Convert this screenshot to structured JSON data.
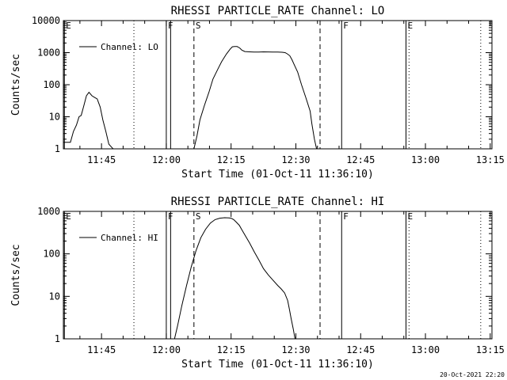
{
  "footer": {
    "timestamp": "20-Oct-2021 22:20"
  },
  "chart_data": [
    {
      "type": "line",
      "title": "RHESSI PARTICLE_RATE Channel: LO",
      "xlabel": "Start Time (01-Oct-11 11:36:10)",
      "ylabel": "Counts/sec",
      "yscale": "log",
      "ylim": [
        1,
        10000
      ],
      "xlim_minutes": [
        36.17,
        135.4
      ],
      "x_tick_labels": [
        "11:45",
        "12:00",
        "12:15",
        "12:30",
        "12:45",
        "13:00",
        "13:15"
      ],
      "x_tick_minutes": [
        45,
        60,
        75,
        90,
        105,
        120,
        135
      ],
      "y_tick_labels": [
        "1",
        "10",
        "100",
        "1000",
        "10000"
      ],
      "y_tick_values": [
        1,
        10,
        100,
        1000,
        10000
      ],
      "legend": {
        "label": "Channel: LO",
        "placement": "top-left"
      },
      "markers": [
        {
          "label": "E",
          "minute": 36.4,
          "style": "solid"
        },
        {
          "label": "F",
          "minute": 60.0,
          "style": "solid"
        },
        {
          "label": "",
          "minute": 61.0,
          "style": "solid"
        },
        {
          "label": "S",
          "minute": 66.4,
          "style": "dashed"
        },
        {
          "label": "",
          "minute": 52.5,
          "style": "dotted"
        },
        {
          "label": "",
          "minute": 95.6,
          "style": "dashed"
        },
        {
          "label": "F",
          "minute": 100.6,
          "style": "solid"
        },
        {
          "label": "E",
          "minute": 115.5,
          "style": "solid"
        },
        {
          "label": "",
          "minute": 116.2,
          "style": "dotted"
        },
        {
          "label": "",
          "minute": 132.8,
          "style": "dotted"
        }
      ],
      "series": [
        {
          "name": "Channel: LO",
          "segments": [
            {
              "x": [
                36.2,
                37.8,
                38.5,
                39.2,
                39.8,
                40.3,
                40.9,
                41.5,
                42.1,
                42.8,
                43.4,
                44.0,
                44.7,
                45.3,
                46.0,
                46.7,
                47.4,
                47.7
              ],
              "y": [
                1.6,
                1.6,
                3.5,
                5.5,
                10,
                11,
                22,
                45,
                58,
                45,
                40,
                36,
                20,
                8,
                3.5,
                1.4,
                1.1,
                1.0
              ]
            },
            {
              "x": [
                66.4,
                67.1,
                67.8,
                68.8,
                69.9,
                70.8,
                71.9,
                72.8,
                73.9,
                74.8,
                75.3,
                75.8,
                76.4,
                77.0,
                77.5,
                78.2,
                79.3,
                80.3,
                81.4,
                82.5,
                83.6,
                84.7,
                85.8,
                86.8,
                87.5,
                88.0,
                88.6,
                89.1,
                89.7,
                90.4,
                91.3,
                92.3,
                93.3,
                93.7,
                94.3,
                94.8
              ],
              "y": [
                1.0,
                2.5,
                8,
                22,
                60,
                150,
                300,
                520,
                900,
                1300,
                1520,
                1560,
                1550,
                1400,
                1200,
                1080,
                1060,
                1040,
                1040,
                1060,
                1050,
                1040,
                1040,
                1030,
                1000,
                920,
                800,
                600,
                400,
                250,
                100,
                40,
                15,
                6,
                2,
                1.0
              ]
            }
          ]
        }
      ]
    },
    {
      "type": "line",
      "title": "RHESSI PARTICLE_RATE Channel: HI",
      "xlabel": "Start Time (01-Oct-11 11:36:10)",
      "ylabel": "Counts/sec",
      "yscale": "log",
      "ylim": [
        1,
        1000
      ],
      "xlim_minutes": [
        36.17,
        135.4
      ],
      "x_tick_labels": [
        "11:45",
        "12:00",
        "12:15",
        "12:30",
        "12:45",
        "13:00",
        "13:15"
      ],
      "x_tick_minutes": [
        45,
        60,
        75,
        90,
        105,
        120,
        135
      ],
      "y_tick_labels": [
        "1",
        "10",
        "100",
        "1000"
      ],
      "y_tick_values": [
        1,
        10,
        100,
        1000
      ],
      "legend": {
        "label": "Channel: HI",
        "placement": "top-left"
      },
      "markers": [
        {
          "label": "E",
          "minute": 36.4,
          "style": "solid"
        },
        {
          "label": "F",
          "minute": 60.0,
          "style": "solid"
        },
        {
          "label": "",
          "minute": 61.0,
          "style": "solid"
        },
        {
          "label": "S",
          "minute": 66.4,
          "style": "dashed"
        },
        {
          "label": "",
          "minute": 52.5,
          "style": "dotted"
        },
        {
          "label": "",
          "minute": 95.6,
          "style": "dashed"
        },
        {
          "label": "F",
          "minute": 100.6,
          "style": "solid"
        },
        {
          "label": "E",
          "minute": 115.5,
          "style": "solid"
        },
        {
          "label": "",
          "minute": 116.2,
          "style": "dotted"
        },
        {
          "label": "",
          "minute": 132.8,
          "style": "dotted"
        }
      ],
      "series": [
        {
          "name": "Channel: HI",
          "segments": [
            {
              "x": [
                61.9,
                62.6,
                63.6,
                64.7,
                65.8,
                66.9,
                68.0,
                69.1,
                70.2,
                71.3,
                72.4,
                73.5,
                74.5,
                75.0,
                75.6,
                76.2,
                76.9,
                77.5,
                78.2,
                79.3,
                80.4,
                81.5,
                82.5,
                83.6,
                84.7,
                85.8,
                86.6,
                87.4,
                88.1,
                88.5,
                88.9,
                89.4,
                89.8
              ],
              "y": [
                1.0,
                2,
                6,
                18,
                50,
                120,
                240,
                380,
                530,
                640,
                690,
                710,
                700,
                690,
                640,
                560,
                470,
                370,
                280,
                180,
                110,
                70,
                45,
                32,
                24,
                18,
                15,
                12,
                8,
                5,
                3,
                1.7,
                1.0
              ]
            }
          ]
        }
      ]
    }
  ]
}
